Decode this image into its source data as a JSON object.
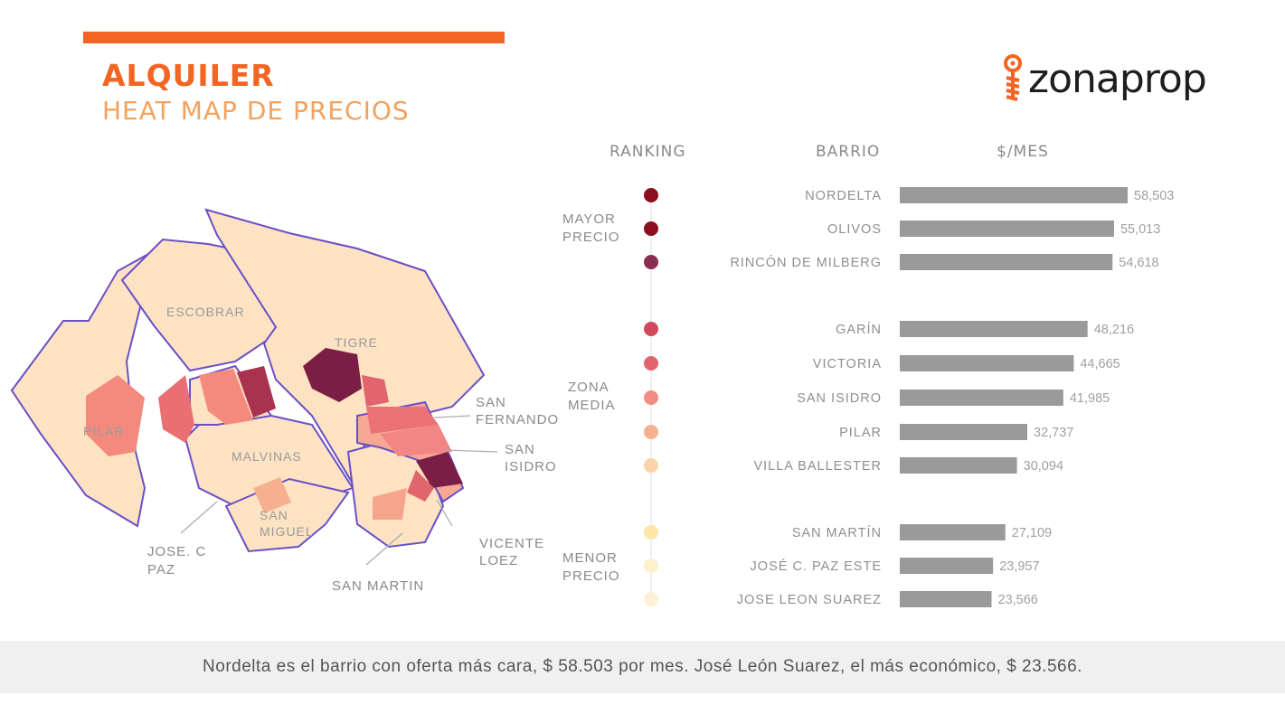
{
  "header": {
    "title": "ALQUILER",
    "subtitle": "HEAT MAP DE PRECIOS"
  },
  "brand": {
    "name": "zonaprop",
    "color": "#f26522"
  },
  "columns": {
    "ranking": "RANKING",
    "barrio": "BARRIO",
    "price": "$/MES"
  },
  "zones": [
    {
      "line1": "MAYOR",
      "line2": "PRECIO"
    },
    {
      "line1": "ZONA",
      "line2": "MEDIA"
    },
    {
      "line1": "MENOR",
      "line2": "PRECIO"
    }
  ],
  "map": {
    "labels": [
      "ESCOBRAR",
      "TIGRE",
      "PILAR",
      "MALVINAS",
      "SAN",
      "MIGUEL"
    ],
    "callouts": [
      {
        "line1": "SAN",
        "line2": "FERNANDO"
      },
      {
        "line1": "SAN",
        "line2": "ISIDRO"
      },
      {
        "line1": "JOSE. C",
        "line2": "PAZ"
      },
      {
        "line1": "SAN MARTIN",
        "line2": ""
      },
      {
        "line1": "VICENTE",
        "line2": "LOEZ"
      }
    ],
    "colors": {
      "base": "#fde3c3",
      "border": "#6a4fc7",
      "salmon": "#f48a7e",
      "rose": "#e0656f",
      "wine": "#8a2049",
      "light": "#f8a795"
    }
  },
  "chart_data": {
    "type": "bar",
    "orientation": "horizontal",
    "title": "HEAT MAP DE PRECIOS",
    "xlabel": "$/MES",
    "categories": [
      "NORDELTA",
      "OLIVOS",
      "RINCÓN DE MILBERG",
      "GARÍN",
      "VICTORIA",
      "SAN ISIDRO",
      "PILAR",
      "VILLA BALLESTER",
      "SAN MARTÍN",
      "JOSÉ C. PAZ ESTE",
      "JOSE LEON SUAREZ"
    ],
    "values": [
      58503,
      55013,
      54618,
      48216,
      44665,
      41985,
      32737,
      30094,
      27109,
      23957,
      23566
    ],
    "value_labels": [
      "58,503",
      "55,013",
      "54,618",
      "48,216",
      "44,665",
      "41,985",
      "32,737",
      "30,094",
      "27,109",
      "23,957",
      "23,566"
    ],
    "groups": [
      0,
      0,
      0,
      1,
      1,
      1,
      1,
      1,
      2,
      2,
      2
    ],
    "dot_colors": [
      "#8b0f1e",
      "#8b0f1e",
      "#8a2f52",
      "#cf4a5a",
      "#e0656f",
      "#f18e82",
      "#f6b08f",
      "#fbd3aa",
      "#fde6a8",
      "#fdf0cd",
      "#fdf0d8"
    ],
    "bar_color": "#9a9a9a",
    "xlim": [
      0,
      60000
    ]
  },
  "footer": {
    "text": "Nordelta es el barrio con oferta más cara, $ 58.503 por mes. José León Suarez, el más económico, $ 23.566."
  }
}
